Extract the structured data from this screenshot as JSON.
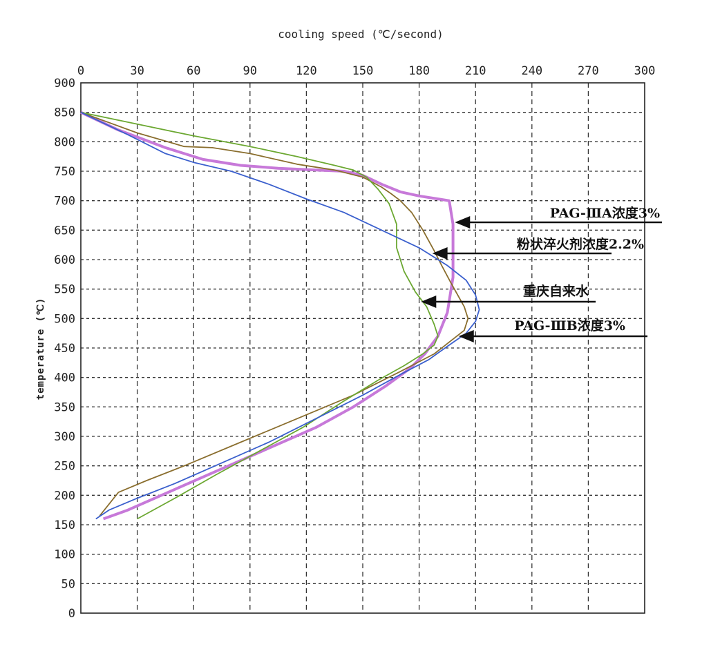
{
  "chart_data": {
    "type": "line",
    "title": "",
    "xlabel": "cooling speed (℃/second)",
    "ylabel": "temperature (℃)",
    "xlim": [
      0,
      300
    ],
    "ylim": [
      0,
      900
    ],
    "xticks": [
      0,
      30,
      60,
      90,
      120,
      150,
      180,
      210,
      240,
      270,
      300
    ],
    "yticks": [
      0,
      50,
      100,
      150,
      200,
      250,
      300,
      350,
      400,
      450,
      500,
      550,
      600,
      650,
      700,
      750,
      800,
      850,
      900
    ],
    "x_axis_position": "top",
    "grid": true,
    "series": [
      {
        "name": "PAG-ⅢA浓度3%",
        "color": "#c779d9",
        "x": [
          0,
          20,
          45,
          65,
          85,
          105,
          125,
          140,
          150,
          160,
          170,
          180,
          190,
          196,
          198,
          198,
          195,
          190,
          183,
          175,
          162,
          145,
          125,
          100,
          75,
          50,
          25,
          12
        ],
        "y": [
          850,
          820,
          790,
          770,
          760,
          755,
          752,
          750,
          743,
          728,
          715,
          708,
          703,
          700,
          660,
          570,
          510,
          470,
          440,
          415,
          385,
          350,
          315,
          280,
          245,
          210,
          175,
          160
        ]
      },
      {
        "name": "粉状淬火剂浓度2.2%",
        "color": "#8a6e2e",
        "x": [
          0,
          30,
          55,
          70,
          90,
          115,
          135,
          150,
          160,
          165,
          170,
          176,
          182,
          188,
          192,
          197,
          204,
          206,
          204,
          198,
          188,
          170,
          145,
          115,
          85,
          55,
          35,
          20,
          10
        ],
        "y": [
          850,
          815,
          792,
          790,
          780,
          762,
          752,
          740,
          723,
          712,
          700,
          680,
          650,
          615,
          590,
          560,
          520,
          500,
          480,
          465,
          440,
          410,
          370,
          330,
          290,
          250,
          225,
          205,
          165
        ]
      },
      {
        "name": "重庆自来水",
        "color": "#6ca832",
        "x": [
          0,
          30,
          60,
          90,
          115,
          135,
          145,
          152,
          158,
          164,
          168,
          168,
          172,
          178,
          184,
          188,
          190,
          188,
          182,
          172,
          158,
          140,
          118,
          95,
          72,
          50,
          30
        ],
        "y": [
          850,
          830,
          810,
          792,
          775,
          760,
          752,
          740,
          720,
          695,
          660,
          620,
          580,
          545,
          520,
          490,
          470,
          455,
          440,
          420,
          395,
          360,
          315,
          275,
          235,
          195,
          160
        ]
      },
      {
        "name": "PAG-ⅢB浓度3%",
        "color": "#3a5fcd",
        "x": [
          0,
          25,
          45,
          60,
          80,
          100,
          120,
          140,
          160,
          180,
          195,
          205,
          210,
          212,
          210,
          205,
          196,
          185,
          170,
          150,
          125,
          100,
          75,
          50,
          30,
          15,
          8
        ],
        "y": [
          850,
          812,
          780,
          765,
          750,
          728,
          703,
          680,
          650,
          620,
          590,
          565,
          540,
          515,
          495,
          475,
          455,
          430,
          405,
          370,
          330,
          290,
          255,
          220,
          195,
          175,
          160
        ]
      }
    ],
    "annotations": [
      {
        "text": "PAG-ⅢA浓度3%",
        "series": 0,
        "arrow_to": [
          199,
          665
        ]
      },
      {
        "text": "粉状淬火剂浓度2.2%",
        "series": 1,
        "arrow_to": [
          187,
          600
        ]
      },
      {
        "text": "重庆自来水",
        "series": 2,
        "arrow_to": [
          181,
          530
        ]
      },
      {
        "text": "PAG-ⅢB浓度3%",
        "series": 3,
        "arrow_to": [
          201,
          470
        ]
      }
    ]
  }
}
